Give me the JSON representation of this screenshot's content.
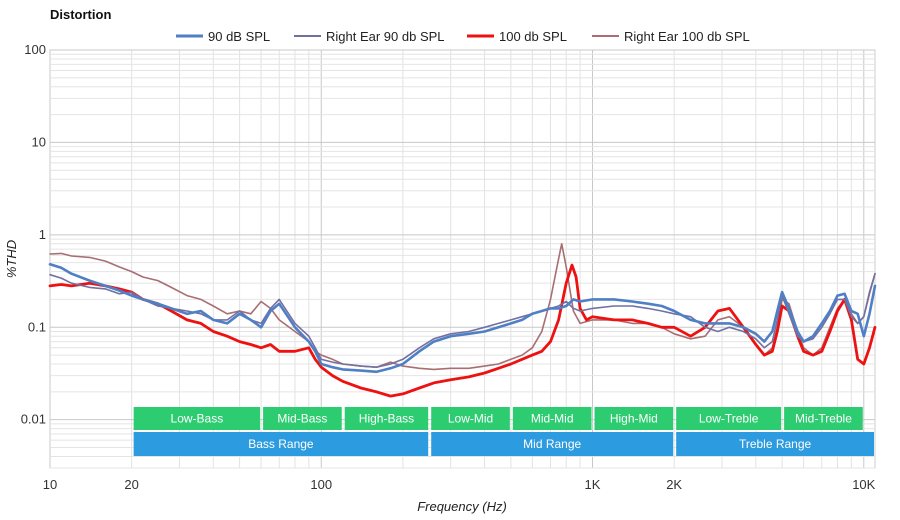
{
  "chart_data": {
    "type": "line",
    "title": "Distortion",
    "xlabel": "Frequency (Hz)",
    "ylabel": "%THD",
    "x_scale": "log",
    "y_scale": "log",
    "xlim": [
      10,
      11000
    ],
    "ylim": [
      0.003,
      100
    ],
    "grid": true,
    "legend_position": "top",
    "x_ticks": [
      {
        "value": 10,
        "label": "10"
      },
      {
        "value": 20,
        "label": "20"
      },
      {
        "value": 100,
        "label": "100"
      },
      {
        "value": 1000,
        "label": "1K"
      },
      {
        "value": 2000,
        "label": "2K"
      },
      {
        "value": 10000,
        "label": "10K"
      }
    ],
    "y_ticks": [
      {
        "value": 100,
        "label": "100"
      },
      {
        "value": 10,
        "label": "10"
      },
      {
        "value": 1,
        "label": "1"
      },
      {
        "value": 0.1,
        "label": "0.1"
      },
      {
        "value": 0.01,
        "label": "0.01"
      }
    ],
    "bands_top": [
      {
        "label": "Low-Bass",
        "from": 20,
        "to": 60,
        "color": "#2ecc71"
      },
      {
        "label": "Mid-Bass",
        "from": 60,
        "to": 120,
        "color": "#2ecc71"
      },
      {
        "label": "High-Bass",
        "from": 120,
        "to": 250,
        "color": "#2ecc71"
      },
      {
        "label": "Low-Mid",
        "from": 250,
        "to": 500,
        "color": "#2ecc71"
      },
      {
        "label": "Mid-Mid",
        "from": 500,
        "to": 1000,
        "color": "#2ecc71"
      },
      {
        "label": "High-Mid",
        "from": 1000,
        "to": 2000,
        "color": "#2ecc71"
      },
      {
        "label": "Low-Treble",
        "from": 2000,
        "to": 5000,
        "color": "#2ecc71"
      },
      {
        "label": "Mid-Treble",
        "from": 5000,
        "to": 10000,
        "color": "#2ecc71"
      }
    ],
    "bands_bottom": [
      {
        "label": "Bass Range",
        "from": 20,
        "to": 250,
        "color": "#2d9be0"
      },
      {
        "label": "Mid Range",
        "from": 250,
        "to": 2000,
        "color": "#2d9be0"
      },
      {
        "label": "Treble Range",
        "from": 2000,
        "to": 11000,
        "color": "#2d9be0"
      }
    ],
    "series": [
      {
        "name": "Right Ear 100 db SPL",
        "color": "#a86e72",
        "width": 1.6,
        "x": [
          10,
          11,
          12,
          14,
          16,
          18,
          20,
          22,
          25,
          28,
          32,
          36,
          40,
          45,
          50,
          55,
          60,
          65,
          70,
          80,
          90,
          95,
          100,
          110,
          120,
          140,
          160,
          180,
          200,
          230,
          260,
          300,
          350,
          400,
          450,
          500,
          550,
          600,
          650,
          700,
          750,
          770,
          800,
          850,
          900,
          1000,
          1200,
          1400,
          1600,
          1800,
          2000,
          2300,
          2600,
          2900,
          3200,
          3600,
          4000,
          4300,
          4600,
          4800,
          5000,
          5300,
          5700,
          6000,
          6500,
          7000,
          7500,
          8000,
          8500,
          9000,
          9500,
          10000,
          10500,
          11000
        ],
        "y": [
          0.62,
          0.63,
          0.59,
          0.57,
          0.52,
          0.45,
          0.4,
          0.35,
          0.32,
          0.27,
          0.22,
          0.2,
          0.17,
          0.14,
          0.15,
          0.14,
          0.19,
          0.16,
          0.12,
          0.09,
          0.07,
          0.055,
          0.05,
          0.045,
          0.04,
          0.038,
          0.037,
          0.042,
          0.038,
          0.036,
          0.035,
          0.036,
          0.036,
          0.038,
          0.04,
          0.045,
          0.05,
          0.06,
          0.09,
          0.2,
          0.55,
          0.8,
          0.45,
          0.15,
          0.11,
          0.12,
          0.12,
          0.11,
          0.11,
          0.1,
          0.085,
          0.075,
          0.08,
          0.12,
          0.13,
          0.1,
          0.065,
          0.05,
          0.06,
          0.1,
          0.2,
          0.18,
          0.09,
          0.06,
          0.05,
          0.06,
          0.1,
          0.16,
          0.2,
          0.14,
          0.11,
          0.13,
          0.23,
          0.38
        ]
      },
      {
        "name": "100 db SPL",
        "color": "#ee1111",
        "width": 2.8,
        "x": [
          10,
          11,
          12,
          14,
          16,
          18,
          20,
          22,
          25,
          28,
          32,
          36,
          40,
          45,
          50,
          55,
          60,
          65,
          70,
          80,
          90,
          95,
          100,
          110,
          120,
          140,
          160,
          180,
          200,
          230,
          260,
          300,
          350,
          400,
          450,
          500,
          550,
          600,
          650,
          700,
          750,
          800,
          840,
          870,
          900,
          950,
          1000,
          1200,
          1400,
          1600,
          1800,
          2000,
          2300,
          2600,
          2900,
          3200,
          3600,
          4000,
          4300,
          4600,
          4800,
          5000,
          5300,
          5700,
          6000,
          6500,
          7000,
          7500,
          8000,
          8500,
          9000,
          9500,
          10000,
          10500,
          11000
        ],
        "y": [
          0.28,
          0.29,
          0.28,
          0.3,
          0.28,
          0.26,
          0.24,
          0.2,
          0.18,
          0.15,
          0.12,
          0.11,
          0.09,
          0.08,
          0.07,
          0.065,
          0.06,
          0.065,
          0.055,
          0.055,
          0.06,
          0.045,
          0.037,
          0.03,
          0.026,
          0.022,
          0.02,
          0.018,
          0.019,
          0.022,
          0.025,
          0.027,
          0.029,
          0.032,
          0.036,
          0.04,
          0.045,
          0.05,
          0.055,
          0.07,
          0.12,
          0.3,
          0.47,
          0.35,
          0.16,
          0.12,
          0.13,
          0.12,
          0.12,
          0.11,
          0.1,
          0.1,
          0.08,
          0.1,
          0.15,
          0.16,
          0.1,
          0.065,
          0.05,
          0.055,
          0.09,
          0.17,
          0.15,
          0.08,
          0.055,
          0.05,
          0.055,
          0.09,
          0.15,
          0.2,
          0.12,
          0.045,
          0.04,
          0.06,
          0.1
        ]
      },
      {
        "name": "Right Ear 90 db SPL",
        "color": "#7170a2",
        "width": 1.6,
        "x": [
          10,
          11,
          12,
          14,
          16,
          18,
          20,
          22,
          25,
          28,
          32,
          36,
          40,
          45,
          50,
          55,
          60,
          65,
          70,
          80,
          90,
          95,
          100,
          110,
          120,
          140,
          160,
          180,
          200,
          230,
          260,
          300,
          350,
          400,
          450,
          500,
          550,
          600,
          650,
          700,
          750,
          800,
          850,
          900,
          1000,
          1200,
          1400,
          1600,
          1800,
          2000,
          2300,
          2600,
          2900,
          3200,
          3600,
          4000,
          4300,
          4600,
          4800,
          5000,
          5300,
          5700,
          6000,
          6500,
          7000,
          7500,
          8000,
          8500,
          9000,
          9500,
          10000,
          10500,
          11000
        ],
        "y": [
          0.37,
          0.34,
          0.3,
          0.27,
          0.26,
          0.23,
          0.24,
          0.2,
          0.17,
          0.16,
          0.15,
          0.14,
          0.12,
          0.12,
          0.15,
          0.12,
          0.11,
          0.16,
          0.2,
          0.11,
          0.08,
          0.06,
          0.045,
          0.042,
          0.04,
          0.038,
          0.037,
          0.04,
          0.045,
          0.06,
          0.075,
          0.085,
          0.09,
          0.1,
          0.11,
          0.12,
          0.13,
          0.14,
          0.15,
          0.16,
          0.17,
          0.19,
          0.16,
          0.15,
          0.16,
          0.17,
          0.17,
          0.16,
          0.15,
          0.14,
          0.13,
          0.1,
          0.09,
          0.1,
          0.09,
          0.075,
          0.06,
          0.07,
          0.12,
          0.22,
          0.14,
          0.08,
          0.07,
          0.075,
          0.1,
          0.14,
          0.2,
          0.2,
          0.13,
          0.11,
          0.13,
          0.24,
          0.38
        ]
      },
      {
        "name": "90 dB SPL",
        "color": "#4f7fc4",
        "width": 2.6,
        "x": [
          10,
          11,
          12,
          14,
          16,
          18,
          20,
          22,
          25,
          28,
          32,
          36,
          40,
          45,
          50,
          55,
          60,
          65,
          70,
          80,
          90,
          95,
          100,
          110,
          120,
          140,
          160,
          180,
          200,
          230,
          260,
          300,
          350,
          400,
          450,
          500,
          550,
          600,
          650,
          700,
          750,
          800,
          850,
          900,
          1000,
          1200,
          1400,
          1600,
          1800,
          2000,
          2300,
          2600,
          2900,
          3200,
          3600,
          4000,
          4300,
          4600,
          4800,
          5000,
          5300,
          5700,
          6000,
          6500,
          7000,
          7500,
          8000,
          8500,
          9000,
          9500,
          10000,
          10500,
          11000
        ],
        "y": [
          0.48,
          0.44,
          0.38,
          0.32,
          0.28,
          0.25,
          0.22,
          0.2,
          0.18,
          0.16,
          0.14,
          0.15,
          0.12,
          0.11,
          0.14,
          0.12,
          0.1,
          0.15,
          0.18,
          0.1,
          0.07,
          0.055,
          0.04,
          0.037,
          0.035,
          0.034,
          0.033,
          0.036,
          0.04,
          0.055,
          0.07,
          0.08,
          0.085,
          0.09,
          0.1,
          0.11,
          0.12,
          0.14,
          0.15,
          0.16,
          0.16,
          0.17,
          0.2,
          0.19,
          0.2,
          0.2,
          0.19,
          0.18,
          0.17,
          0.15,
          0.12,
          0.11,
          0.11,
          0.11,
          0.1,
          0.085,
          0.07,
          0.09,
          0.15,
          0.24,
          0.16,
          0.09,
          0.07,
          0.08,
          0.11,
          0.15,
          0.22,
          0.23,
          0.15,
          0.14,
          0.08,
          0.14,
          0.28
        ]
      }
    ],
    "legend_order": [
      "90 dB SPL",
      "Right Ear 90 db SPL",
      "100 db SPL",
      "Right Ear 100 db SPL"
    ]
  }
}
